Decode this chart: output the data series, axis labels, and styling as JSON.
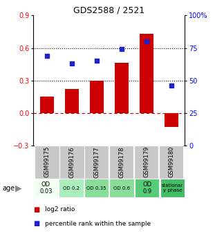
{
  "title": "GDS2588 / 2521",
  "samples": [
    "GSM99175",
    "GSM99176",
    "GSM99177",
    "GSM99178",
    "GSM99179",
    "GSM99180"
  ],
  "log2_ratio": [
    0.15,
    0.22,
    0.3,
    0.46,
    0.73,
    -0.13
  ],
  "percentile_rank": [
    69,
    63,
    65,
    74,
    80,
    46
  ],
  "ylim_left": [
    -0.3,
    0.9
  ],
  "ylim_right": [
    0,
    100
  ],
  "yticks_left": [
    -0.3,
    0.0,
    0.3,
    0.6,
    0.9
  ],
  "yticks_right": [
    0,
    25,
    50,
    75,
    100
  ],
  "ytick_labels_right": [
    "0",
    "25",
    "50",
    "75",
    "100%"
  ],
  "hlines": [
    0.3,
    0.6
  ],
  "bar_color": "#cc0000",
  "dot_color": "#2222cc",
  "zero_line_color": "#cc0000",
  "grid_line_color": "#000000",
  "sample_bg_color": "#c8c8c8",
  "age_labels": [
    "OD\n0.03",
    "OD 0.2",
    "OD 0.35",
    "OD 0.6",
    "OD\n0.9",
    "stationar\ny phase"
  ],
  "age_bg_colors": [
    "#f0fff0",
    "#aaeebb",
    "#88dd99",
    "#88dd99",
    "#55cc77",
    "#44bb66"
  ],
  "legend_bar_label": "log2 ratio",
  "legend_dot_label": "percentile rank within the sample"
}
